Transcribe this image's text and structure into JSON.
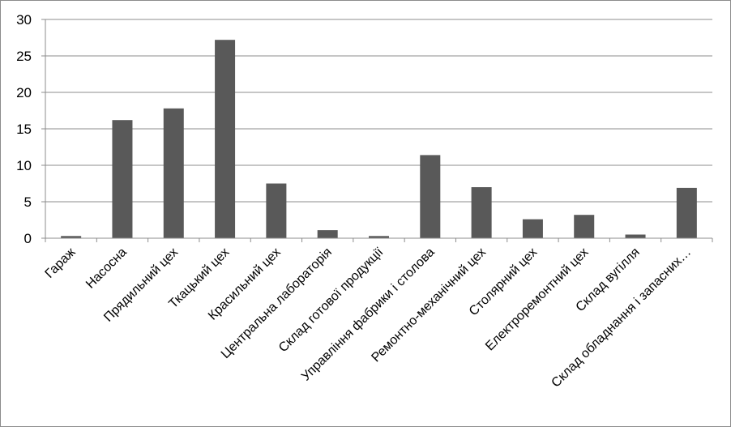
{
  "chart_data": {
    "type": "bar",
    "title": "",
    "xlabel": "",
    "ylabel": "",
    "ylim": [
      0,
      30
    ],
    "yticks": [
      0,
      5,
      10,
      15,
      20,
      25,
      30
    ],
    "grid": true,
    "legend": "none",
    "bar_color": "#595959",
    "categories": [
      "Гараж",
      "Насосна",
      "Прядильний цех",
      "Ткацький цех",
      "Красильний цех",
      "Центральна лабораторія",
      "Склад готової продукції",
      "Управління фабрики і столова",
      "Ремонтно-механічний цех",
      "Столярний цех",
      "Електроремонтний цех",
      "Склад вугілля",
      "Склад обладнання і запасних…"
    ],
    "values": [
      0.3,
      16.2,
      17.8,
      27.2,
      7.5,
      1.1,
      0.3,
      11.4,
      7.0,
      2.6,
      3.2,
      0.5,
      6.9
    ]
  }
}
